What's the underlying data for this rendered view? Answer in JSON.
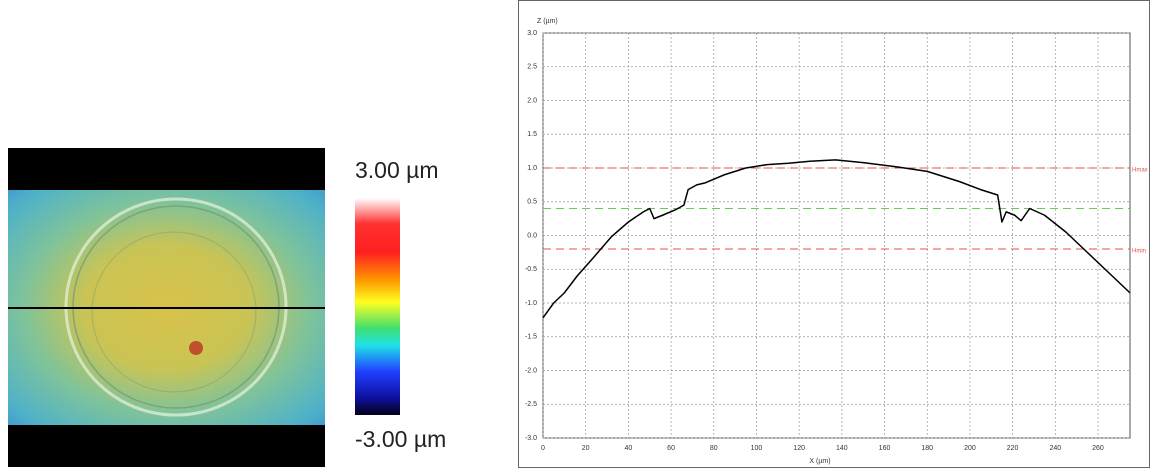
{
  "height_map": {
    "max_label": "3.00 µm",
    "min_label": "-3.00 µm"
  },
  "chart_data": {
    "type": "line",
    "y_label": "Z (µm)",
    "x_label": "X (µm)",
    "xlim": [
      0,
      275
    ],
    "xticks": [
      0,
      20,
      40,
      60,
      80,
      100,
      120,
      140,
      160,
      180,
      200,
      220,
      240,
      260
    ],
    "ylim": [
      -3,
      3
    ],
    "yticks": [
      {
        "value": 3,
        "label": "3.0"
      },
      2.5,
      {
        "value": 2,
        "label": "2.0"
      },
      1.5,
      {
        "value": 1,
        "label": "1.0"
      },
      0.5,
      {
        "value": 0,
        "label": "0.0"
      },
      -0.5,
      {
        "value": -1,
        "label": "-1.0"
      },
      -1.5,
      {
        "value": -2,
        "label": "-2.0"
      },
      -2.5,
      {
        "value": -3,
        "label": "-3.0"
      }
    ],
    "grid": true,
    "reference_lines": [
      {
        "value": 1.0,
        "label": "Hmax",
        "color": "#e8504a"
      },
      {
        "value": -0.2,
        "label": "Hmin",
        "color": "#e8504a"
      },
      {
        "value": 0.4,
        "color": "#66cc55"
      }
    ],
    "series": [
      {
        "color": "#000000",
        "x": [
          0,
          5,
          10,
          16,
          23,
          32,
          40,
          47,
          50,
          52,
          56,
          62,
          66,
          68,
          72,
          76,
          85,
          95,
          105,
          115,
          125,
          137,
          150,
          165,
          180,
          195,
          205,
          213,
          215,
          217,
          221,
          224,
          228,
          235,
          245,
          255,
          265,
          275
        ],
        "values": [
          -1.22,
          -1.0,
          -0.85,
          -0.6,
          -0.35,
          -0.02,
          0.2,
          0.35,
          0.4,
          0.25,
          0.3,
          0.38,
          0.45,
          0.68,
          0.75,
          0.78,
          0.9,
          1.0,
          1.05,
          1.07,
          1.1,
          1.12,
          1.08,
          1.02,
          0.95,
          0.8,
          0.68,
          0.6,
          0.2,
          0.35,
          0.3,
          0.22,
          0.4,
          0.3,
          0.05,
          -0.25,
          -0.55,
          -0.85
        ]
      }
    ]
  }
}
